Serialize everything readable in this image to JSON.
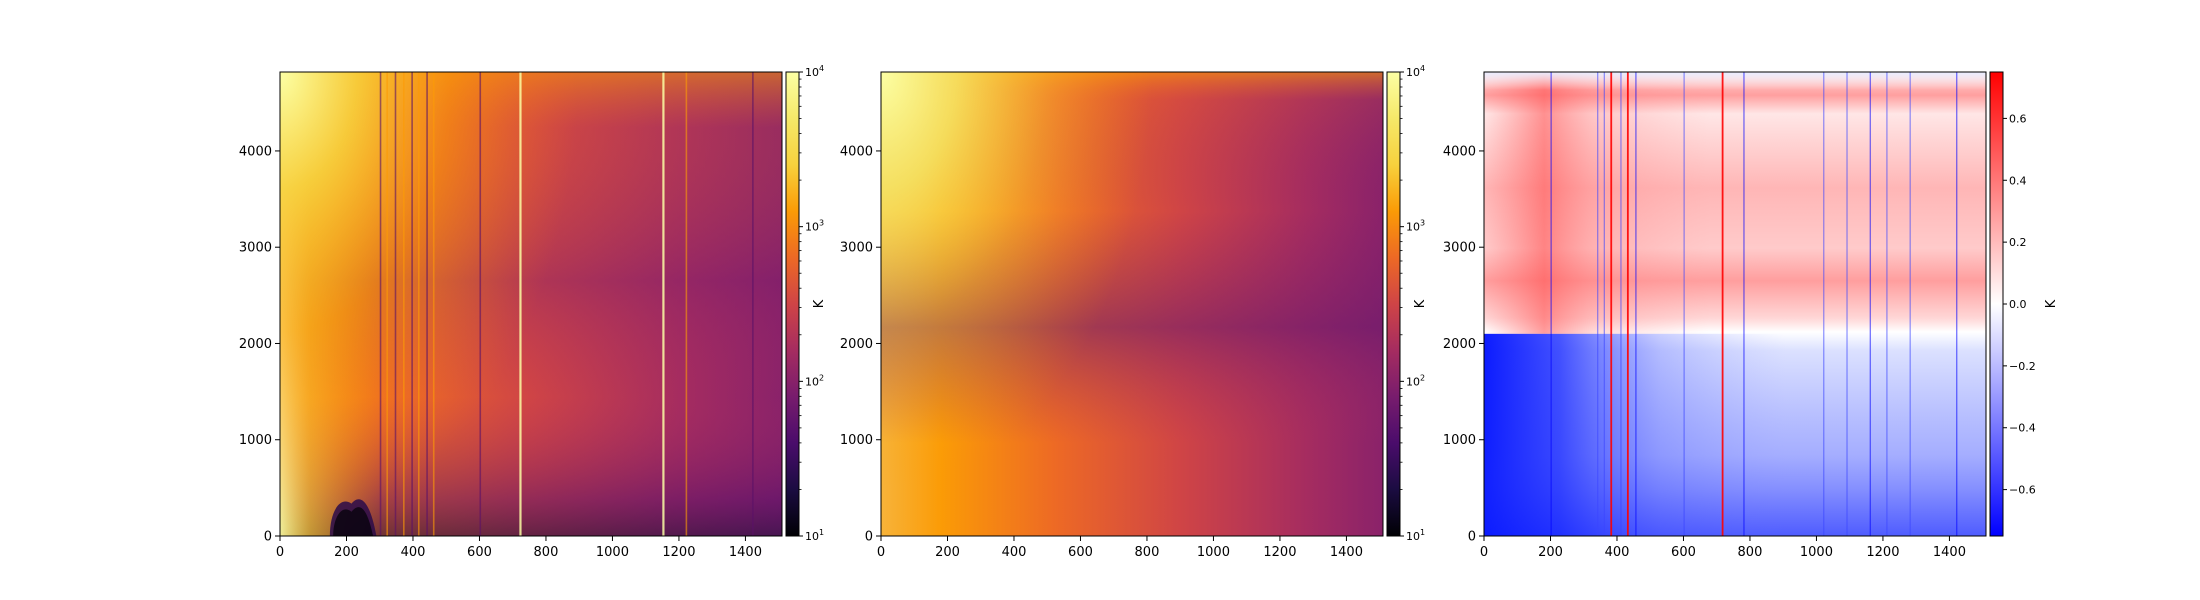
{
  "chart_data": [
    {
      "type": "heatmap",
      "xlim": [
        0,
        1510
      ],
      "ylim": [
        0,
        4820
      ],
      "x_ticks": [
        "0",
        "200",
        "400",
        "600",
        "800",
        "1000",
        "1200",
        "1400"
      ],
      "y_ticks": [
        "0",
        "1000",
        "2000",
        "3000",
        "4000"
      ],
      "colormap": "inferno",
      "colorbar": {
        "label": "K",
        "scale": "log",
        "range": [
          10,
          10000
        ],
        "ticks": [
          {
            "base": "10",
            "exp": "1"
          },
          {
            "base": "10",
            "exp": "2"
          },
          {
            "base": "10",
            "exp": "3"
          },
          {
            "base": "10",
            "exp": "4"
          }
        ]
      },
      "vertical_streaks_x": [
        300,
        320,
        345,
        370,
        395,
        415,
        440,
        460,
        600,
        720,
        1150,
        1220,
        1420
      ],
      "low_value_region": {
        "x_range": [
          150,
          290
        ],
        "y_range": [
          0,
          420
        ]
      }
    },
    {
      "type": "heatmap",
      "xlim": [
        0,
        1510
      ],
      "ylim": [
        0,
        4820
      ],
      "x_ticks": [
        "0",
        "200",
        "400",
        "600",
        "800",
        "1000",
        "1200",
        "1400"
      ],
      "y_ticks": [
        "0",
        "1000",
        "2000",
        "3000",
        "4000"
      ],
      "colormap": "inferno",
      "colorbar": {
        "label": "K",
        "scale": "log",
        "range": [
          10,
          10000
        ],
        "ticks": [
          {
            "base": "10",
            "exp": "1"
          },
          {
            "base": "10",
            "exp": "2"
          },
          {
            "base": "10",
            "exp": "3"
          },
          {
            "base": "10",
            "exp": "4"
          }
        ]
      }
    },
    {
      "type": "heatmap",
      "xlim": [
        0,
        1510
      ],
      "ylim": [
        0,
        4820
      ],
      "x_ticks": [
        "0",
        "200",
        "400",
        "600",
        "800",
        "1000",
        "1200",
        "1400"
      ],
      "y_ticks": [
        "0",
        "1000",
        "2000",
        "3000",
        "4000"
      ],
      "colormap": "bwr",
      "colorbar": {
        "label": "K",
        "scale": "linear",
        "range": [
          -0.75,
          0.75
        ],
        "ticks": [
          "−0.6",
          "−0.4",
          "−0.2",
          "0.0",
          "0.2",
          "0.4",
          "0.6"
        ]
      },
      "zero_contour_y": 2100,
      "vertical_streaks_x": [
        200,
        340,
        360,
        380,
        410,
        430,
        455,
        600,
        715,
        780,
        1020,
        1090,
        1160,
        1210,
        1280,
        1420
      ]
    }
  ]
}
